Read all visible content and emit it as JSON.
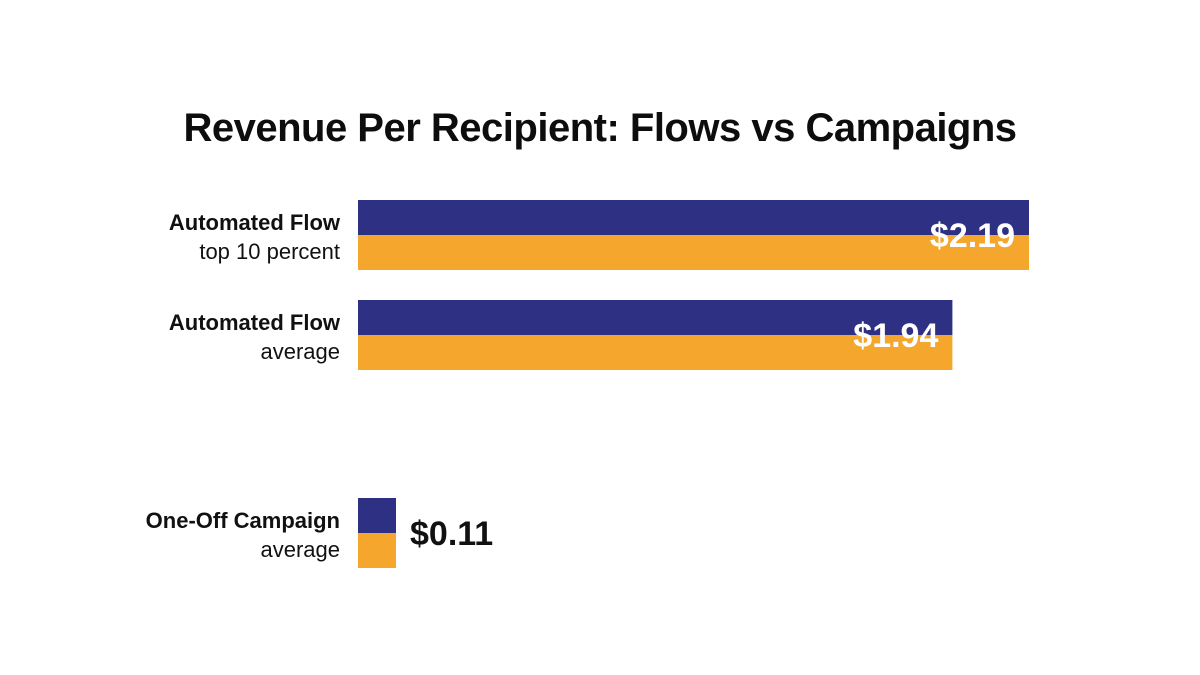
{
  "chart_data": {
    "type": "bar",
    "orientation": "horizontal",
    "title": "Revenue Per Recipient: Flows vs Campaigns",
    "categories": [
      {
        "main": "Automated Flow",
        "sub": "top 10 percent"
      },
      {
        "main": "Automated Flow",
        "sub": "average"
      },
      {
        "main": "One-Off Campaign",
        "sub": "average"
      }
    ],
    "values": [
      2.19,
      1.94,
      0.11
    ],
    "value_labels": [
      "$2.19",
      "$1.94",
      "$0.11"
    ],
    "xlim": [
      0,
      2.19
    ],
    "grid": false,
    "legend": "none",
    "colors": {
      "bar_top": "#2e3183",
      "bar_bottom": "#f4a72c",
      "label_inside": "#ffffff",
      "label_outside": "#111111",
      "text": "#111111"
    }
  }
}
